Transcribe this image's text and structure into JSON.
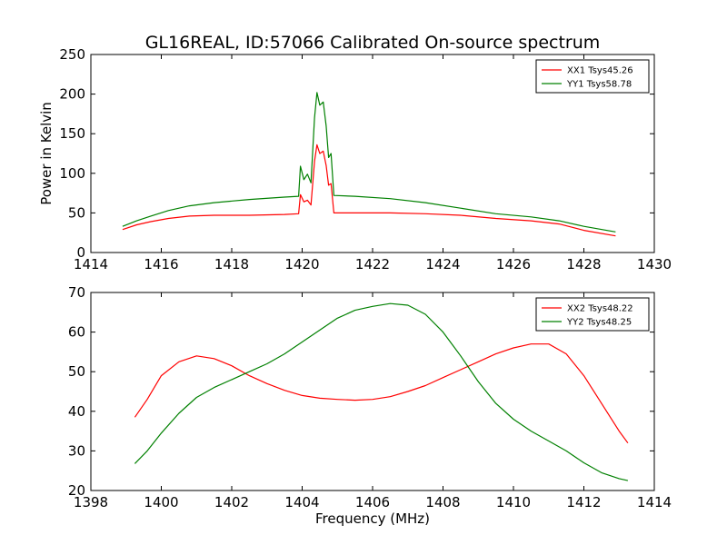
{
  "title": "GL16REAL, ID:57066 Calibrated On-source spectrum",
  "colors": {
    "red": "#ff0000",
    "green": "#008000"
  },
  "chart_data": [
    {
      "type": "line",
      "xlabel": "",
      "ylabel": "Power in Kelvin",
      "xlim": [
        1414,
        1430
      ],
      "ylim": [
        0,
        250
      ],
      "xticks": [
        "1414",
        "1416",
        "1418",
        "1420",
        "1422",
        "1424",
        "1426",
        "1428",
        "1430"
      ],
      "yticks": [
        "0",
        "50",
        "100",
        "150",
        "200",
        "250"
      ],
      "legend_position": "top-right",
      "series": [
        {
          "name": "XX1 Tsys45.26",
          "color": "#ff0000",
          "x": [
            1414.9,
            1415.3,
            1415.7,
            1416.2,
            1416.8,
            1417.5,
            1418.5,
            1419.5,
            1419.9,
            1419.95,
            1420.05,
            1420.15,
            1420.25,
            1420.35,
            1420.42,
            1420.5,
            1420.6,
            1420.68,
            1420.75,
            1420.82,
            1420.9,
            1421.5,
            1422.5,
            1423.5,
            1424.5,
            1425.5,
            1426.5,
            1427.3,
            1428,
            1428.9
          ],
          "y": [
            29,
            35,
            39,
            43,
            46,
            47,
            47,
            48,
            49,
            73,
            64,
            66,
            60,
            115,
            136,
            125,
            128,
            110,
            85,
            87,
            50,
            50,
            50,
            49,
            47,
            43,
            40,
            36,
            28,
            21
          ]
        },
        {
          "name": "YY1 Tsys58.78",
          "color": "#008000",
          "x": [
            1414.9,
            1415.3,
            1415.7,
            1416.2,
            1416.8,
            1417.5,
            1418.5,
            1419.5,
            1419.9,
            1419.95,
            1420.05,
            1420.15,
            1420.25,
            1420.35,
            1420.42,
            1420.5,
            1420.6,
            1420.68,
            1420.75,
            1420.82,
            1420.9,
            1421.5,
            1422.5,
            1423.5,
            1424.5,
            1425.5,
            1426.5,
            1427.3,
            1428,
            1428.9
          ],
          "y": [
            33,
            40,
            46,
            53,
            59,
            63,
            67,
            70,
            71,
            109,
            92,
            99,
            88,
            170,
            202,
            186,
            190,
            160,
            120,
            125,
            72,
            71,
            68,
            63,
            56,
            49,
            45,
            40,
            33,
            26
          ]
        }
      ]
    },
    {
      "type": "line",
      "xlabel": "Frequency (MHz)",
      "ylabel": "",
      "xlim": [
        1398,
        1414
      ],
      "ylim": [
        20,
        70
      ],
      "xticks": [
        "1398",
        "1400",
        "1402",
        "1404",
        "1406",
        "1408",
        "1410",
        "1412",
        "1414"
      ],
      "yticks": [
        "20",
        "30",
        "40",
        "50",
        "60",
        "70"
      ],
      "legend_position": "top-right",
      "series": [
        {
          "name": "XX2 Tsys48.22",
          "color": "#ff0000",
          "x": [
            1399.25,
            1399.6,
            1400,
            1400.5,
            1401,
            1401.5,
            1402,
            1402.5,
            1403,
            1403.5,
            1404,
            1404.5,
            1405,
            1405.5,
            1406,
            1406.5,
            1407,
            1407.5,
            1408,
            1408.5,
            1409,
            1409.5,
            1410,
            1410.5,
            1411,
            1411.5,
            1412,
            1412.5,
            1413,
            1413.25
          ],
          "y": [
            38.5,
            43,
            49,
            52.5,
            54,
            53.3,
            51.5,
            49,
            47,
            45.3,
            44,
            43.3,
            43,
            42.8,
            43,
            43.7,
            45,
            46.5,
            48.5,
            50.5,
            52.5,
            54.5,
            56,
            57,
            57,
            54.5,
            49,
            42,
            35,
            32
          ]
        },
        {
          "name": "YY2 Tsys48.25",
          "color": "#008000",
          "x": [
            1399.25,
            1399.6,
            1400,
            1400.5,
            1401,
            1401.5,
            1402,
            1402.5,
            1403,
            1403.5,
            1404,
            1404.5,
            1405,
            1405.5,
            1406,
            1406.5,
            1407,
            1407.5,
            1408,
            1408.5,
            1409,
            1409.5,
            1410,
            1410.5,
            1411,
            1411.5,
            1412,
            1412.5,
            1413,
            1413.25
          ],
          "y": [
            26.8,
            30,
            34.5,
            39.5,
            43.5,
            46,
            48,
            50,
            52,
            54.5,
            57.5,
            60.5,
            63.5,
            65.5,
            66.5,
            67.2,
            66.8,
            64.5,
            60,
            54,
            47.5,
            42,
            38,
            35,
            32.5,
            30,
            27,
            24.5,
            23,
            22.5
          ]
        }
      ]
    }
  ]
}
